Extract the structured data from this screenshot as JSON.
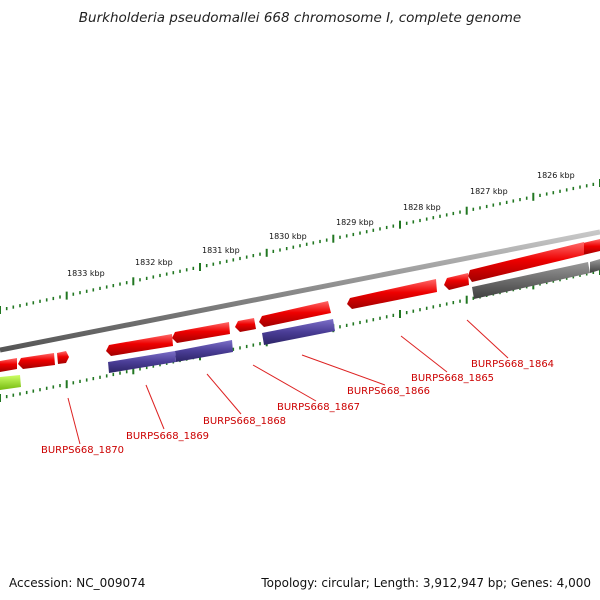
{
  "title": "Burkholderia pseudomallei 668 chromosome I, complete genome",
  "footer": {
    "accession": "Accession: NC_009074",
    "stats": "Topology: circular; Length: 3,912,947 bp; Genes: 4,000"
  },
  "colors": {
    "forward_gene": "#e00000",
    "reverse_gene": "#e00000",
    "rna_or_pseudo": "#4a3d96",
    "gray_feature": "#6b6b6b",
    "highlight": "#99dd22",
    "backbone": "#8a8a8a",
    "tick": "#227722",
    "label": "#cc0000"
  },
  "scale_labels": [
    "1826 kbp",
    "1827 kbp",
    "1828 kbp",
    "1829 kbp",
    "1830 kbp",
    "1831 kbp",
    "1832 kbp",
    "1833 kbp"
  ],
  "gene_labels": [
    "BURPS668_1864",
    "BURPS668_1865",
    "BURPS668_1866",
    "BURPS668_1867",
    "BURPS668_1868",
    "BURPS668_1869",
    "BURPS668_1870"
  ]
}
